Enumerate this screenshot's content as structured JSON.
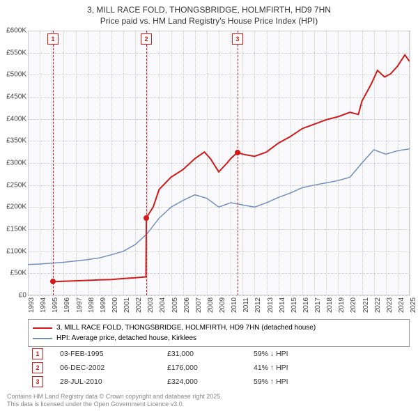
{
  "title": {
    "line1": "3, MILL RACE FOLD, THONGSBRIDGE, HOLMFIRTH, HD9 7HN",
    "line2": "Price paid vs. HM Land Registry's House Price Index (HPI)"
  },
  "chart": {
    "type": "line",
    "background_color": "#fafafc",
    "grid_color": "#c8c8c8",
    "x_years": [
      1993,
      1994,
      1995,
      1996,
      1997,
      1998,
      1999,
      2000,
      2001,
      2002,
      2003,
      2004,
      2005,
      2006,
      2007,
      2008,
      2009,
      2010,
      2011,
      2012,
      2013,
      2014,
      2015,
      2016,
      2017,
      2018,
      2019,
      2020,
      2021,
      2022,
      2023,
      2024,
      2025
    ],
    "y_ticks": [
      0,
      50000,
      100000,
      150000,
      200000,
      250000,
      300000,
      350000,
      400000,
      450000,
      500000,
      550000,
      600000
    ],
    "y_tick_labels": [
      "£0",
      "£50K",
      "£100K",
      "£150K",
      "£200K",
      "£250K",
      "£300K",
      "£350K",
      "£400K",
      "£450K",
      "£500K",
      "£550K",
      "£600K"
    ],
    "y_max": 600000,
    "series": {
      "price_paid": {
        "color": "#d11919",
        "width": 2,
        "legend": "3, MILL RACE FOLD, THONGSBRIDGE, HOLMFIRTH, HD9 7HN (detached house)",
        "points": [
          [
            1995.1,
            31000
          ],
          [
            1996,
            32000
          ],
          [
            1997,
            33000
          ],
          [
            1998,
            34000
          ],
          [
            1999,
            35000
          ],
          [
            2000,
            36000
          ],
          [
            2001,
            38000
          ],
          [
            2002,
            40000
          ],
          [
            2002.9,
            42000
          ],
          [
            2002.93,
            176000
          ],
          [
            2003.5,
            200000
          ],
          [
            2004,
            240000
          ],
          [
            2005,
            268000
          ],
          [
            2006,
            285000
          ],
          [
            2007,
            310000
          ],
          [
            2007.8,
            325000
          ],
          [
            2008.3,
            310000
          ],
          [
            2009,
            280000
          ],
          [
            2009.7,
            300000
          ],
          [
            2010,
            310000
          ],
          [
            2010.57,
            324000
          ],
          [
            2011,
            320000
          ],
          [
            2012,
            315000
          ],
          [
            2013,
            325000
          ],
          [
            2014,
            345000
          ],
          [
            2015,
            360000
          ],
          [
            2016,
            378000
          ],
          [
            2017,
            388000
          ],
          [
            2018,
            398000
          ],
          [
            2019,
            405000
          ],
          [
            2020,
            415000
          ],
          [
            2020.7,
            410000
          ],
          [
            2021,
            440000
          ],
          [
            2021.8,
            480000
          ],
          [
            2022.3,
            510000
          ],
          [
            2022.9,
            495000
          ],
          [
            2023.4,
            502000
          ],
          [
            2024,
            520000
          ],
          [
            2024.6,
            545000
          ],
          [
            2025,
            530000
          ]
        ]
      },
      "hpi": {
        "color": "#6f8fbf",
        "width": 1.5,
        "legend": "HPI: Average price, detached house, Kirklees",
        "points": [
          [
            1993,
            70000
          ],
          [
            1994,
            71000
          ],
          [
            1995,
            73000
          ],
          [
            1996,
            75000
          ],
          [
            1997,
            78000
          ],
          [
            1998,
            81000
          ],
          [
            1999,
            85000
          ],
          [
            2000,
            92000
          ],
          [
            2001,
            100000
          ],
          [
            2002,
            115000
          ],
          [
            2003,
            140000
          ],
          [
            2004,
            175000
          ],
          [
            2005,
            200000
          ],
          [
            2006,
            215000
          ],
          [
            2007,
            228000
          ],
          [
            2008,
            220000
          ],
          [
            2009,
            200000
          ],
          [
            2010,
            210000
          ],
          [
            2011,
            205000
          ],
          [
            2012,
            200000
          ],
          [
            2013,
            210000
          ],
          [
            2014,
            222000
          ],
          [
            2015,
            232000
          ],
          [
            2016,
            244000
          ],
          [
            2017,
            250000
          ],
          [
            2018,
            255000
          ],
          [
            2019,
            260000
          ],
          [
            2020,
            268000
          ],
          [
            2021,
            300000
          ],
          [
            2022,
            330000
          ],
          [
            2023,
            320000
          ],
          [
            2024,
            328000
          ],
          [
            2025,
            332000
          ]
        ]
      }
    },
    "events": [
      {
        "n": "1",
        "year_frac": 1995.1,
        "price": 31000,
        "date": "03-FEB-1995",
        "price_label": "£31,000",
        "diff_label": "59% ↓ HPI"
      },
      {
        "n": "2",
        "year_frac": 2002.93,
        "price": 176000,
        "date": "06-DEC-2002",
        "price_label": "£176,000",
        "diff_label": "41% ↑ HPI"
      },
      {
        "n": "3",
        "year_frac": 2010.57,
        "price": 324000,
        "date": "28-JUL-2010",
        "price_label": "£324,000",
        "diff_label": "59% ↑ HPI"
      }
    ]
  },
  "attribution": {
    "line1": "Contains HM Land Registry data © Crown copyright and database right 2025.",
    "line2": "This data is licensed under the Open Government Licence v3.0."
  }
}
